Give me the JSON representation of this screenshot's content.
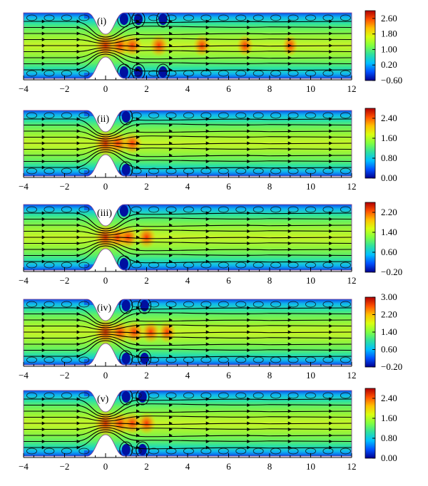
{
  "chart_data": [
    {
      "type": "heatmap",
      "panel_label": "(i)",
      "x_ticks": [
        "−4",
        "−2",
        "0",
        "2",
        "4",
        "6",
        "8",
        "10",
        "12"
      ],
      "xlim": [
        -4,
        12
      ],
      "colorbar_ticks": [
        "2.60",
        "1.80",
        "1.00",
        "0.20",
        "−0.60"
      ],
      "colorbar_range": [
        -0.6,
        3.0
      ],
      "hot_spots": [
        0,
        0.7,
        1.3,
        2.6,
        4.7,
        6.8,
        9.0
      ],
      "vortex_x": [
        0.9,
        1.6,
        2.8
      ]
    },
    {
      "type": "heatmap",
      "panel_label": "(ii)",
      "x_ticks": [
        "−4",
        "−2",
        "0",
        "2",
        "4",
        "6",
        "8",
        "10",
        "12"
      ],
      "xlim": [
        -4,
        12
      ],
      "colorbar_ticks": [
        "2.40",
        "1.60",
        "0.80",
        "0.00"
      ],
      "colorbar_range": [
        0.0,
        2.8
      ],
      "hot_spots": [
        0,
        0.6,
        1.3
      ],
      "vortex_x": [
        1.0
      ]
    },
    {
      "type": "heatmap",
      "panel_label": "(iii)",
      "x_ticks": [
        "−4",
        "−2",
        "0",
        "2",
        "4",
        "6",
        "8",
        "10",
        "12"
      ],
      "xlim": [
        -4,
        12
      ],
      "colorbar_ticks": [
        "2.20",
        "1.40",
        "0.60",
        "−0.20"
      ],
      "colorbar_range": [
        -0.2,
        2.6
      ],
      "hot_spots": [
        0,
        0.6,
        1.1,
        2.0
      ],
      "vortex_x": [
        0.9
      ]
    },
    {
      "type": "heatmap",
      "panel_label": "(iv)",
      "x_ticks": [
        "−4",
        "−2",
        "0",
        "2",
        "4",
        "6",
        "8",
        "10",
        "12"
      ],
      "xlim": [
        -4,
        12
      ],
      "colorbar_ticks": [
        "3.00",
        "2.20",
        "1.40",
        "0.60",
        "−0.20"
      ],
      "colorbar_range": [
        -0.2,
        3.0
      ],
      "hot_spots": [
        0,
        0.7,
        1.4,
        2.2,
        3.0
      ],
      "vortex_x": [
        1.0,
        1.9
      ]
    },
    {
      "type": "heatmap",
      "panel_label": "(v)",
      "x_ticks": [
        "−4",
        "−2",
        "0",
        "2",
        "4",
        "6",
        "8",
        "10",
        "12"
      ],
      "xlim": [
        -4,
        12
      ],
      "colorbar_ticks": [
        "2.40",
        "1.60",
        "0.80",
        "0.00"
      ],
      "colorbar_range": [
        0.0,
        2.8
      ],
      "hot_spots": [
        0,
        0.7,
        1.3,
        2.0
      ],
      "vortex_x": [
        1.0,
        1.8
      ]
    }
  ]
}
